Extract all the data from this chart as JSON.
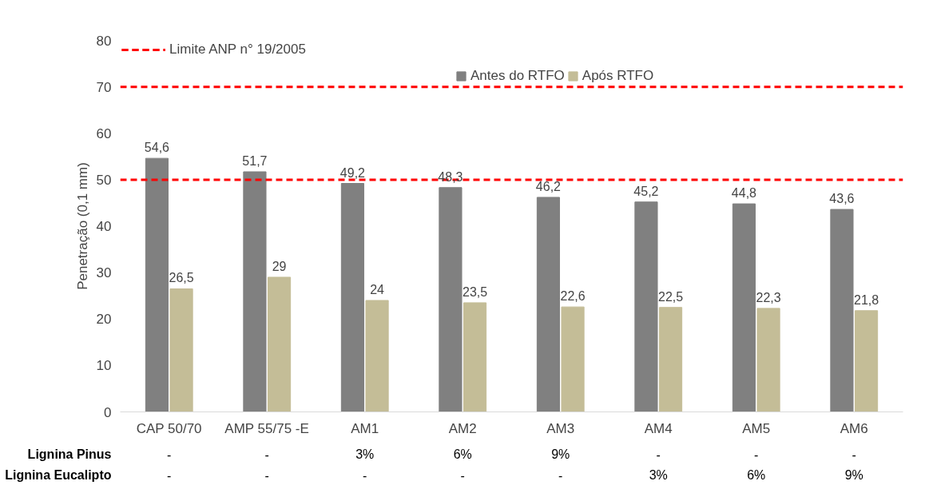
{
  "chart_data": {
    "type": "bar",
    "ylabel": "Penetração (0,1 mm)",
    "categories": [
      "CAP 50/70",
      "AMP 55/75 -E",
      "AM1",
      "AM2",
      "AM3",
      "AM4",
      "AM5",
      "AM6"
    ],
    "series": [
      {
        "name": "Antes do RTFO",
        "color": "#808080",
        "values": [
          54.6,
          51.7,
          49.2,
          48.3,
          46.2,
          45.2,
          44.8,
          43.6
        ],
        "value_labels": [
          "54,6",
          "51,7",
          "49,2",
          "48,3",
          "46,2",
          "45,2",
          "44,8",
          "43,6"
        ]
      },
      {
        "name": "Após RTFO",
        "color": "#c4bd97",
        "values": [
          26.5,
          29,
          24,
          23.5,
          22.6,
          22.5,
          22.3,
          21.8
        ],
        "value_labels": [
          "26,5",
          "29",
          "24",
          "23,5",
          "22,6",
          "22,5",
          "22,3",
          "21,8"
        ]
      }
    ],
    "ylim": [
      0,
      80
    ],
    "yticks": [
      0,
      10,
      20,
      30,
      40,
      50,
      60,
      70,
      80
    ],
    "grid": false,
    "legend": "top",
    "ref_lines": [
      {
        "axis": "y",
        "value": 70,
        "label": "Limite ANP n° 19/2005",
        "color": "#ff0000",
        "line_style": "dashed"
      },
      {
        "axis": "y",
        "value": 50,
        "label": null,
        "color": "#ff0000",
        "line_style": "dashed"
      }
    ],
    "annotations": [
      "Lignina Pinus",
      "-",
      "-",
      "3%",
      "6%",
      "9%",
      "-",
      "-",
      "-",
      "Lignina Eucalipto",
      "-",
      "-",
      "-",
      "-",
      "-",
      "3%",
      "6%",
      "9%"
    ]
  }
}
